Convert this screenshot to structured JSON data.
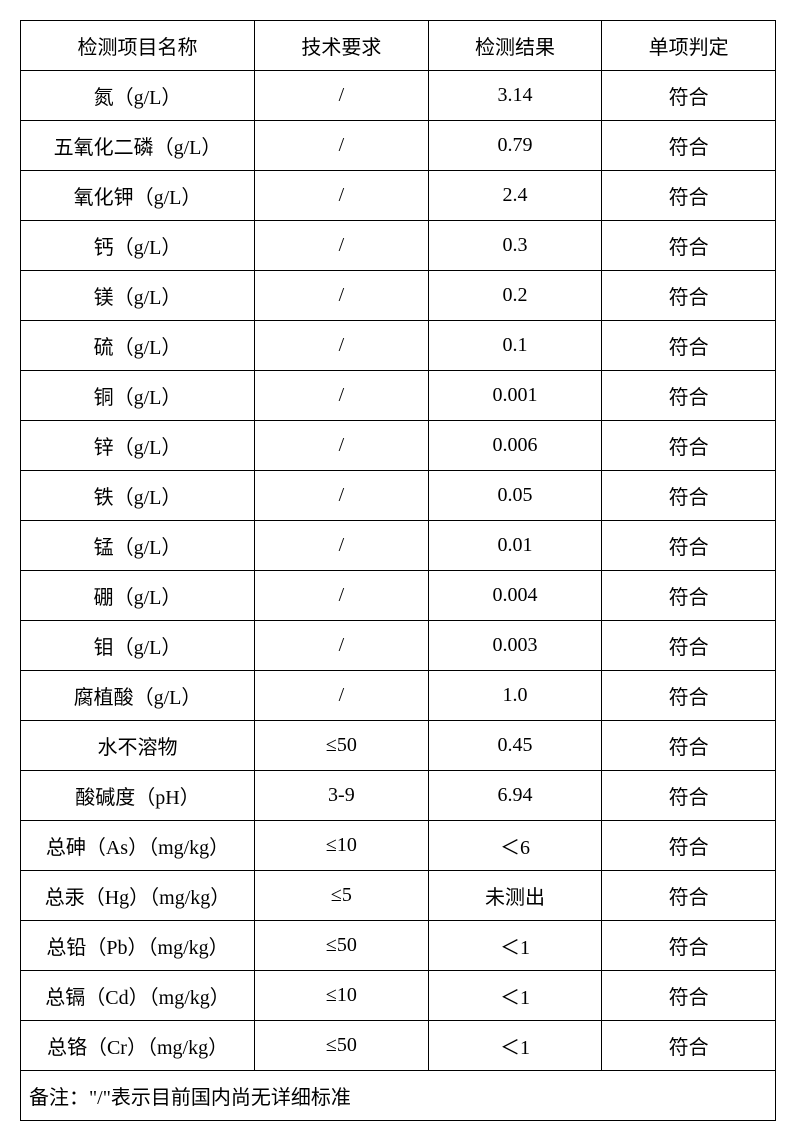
{
  "table": {
    "headers": [
      "检测项目名称",
      "技术要求",
      "检测结果",
      "单项判定"
    ],
    "rows": [
      [
        "氮（g/L）",
        "/",
        "3.14",
        "符合"
      ],
      [
        "五氧化二磷（g/L）",
        "/",
        "0.79",
        "符合"
      ],
      [
        "氧化钾（g/L）",
        "/",
        "2.4",
        "符合"
      ],
      [
        "钙（g/L）",
        "/",
        "0.3",
        "符合"
      ],
      [
        "镁（g/L）",
        "/",
        "0.2",
        "符合"
      ],
      [
        "硫（g/L）",
        "/",
        "0.1",
        "符合"
      ],
      [
        "铜（g/L）",
        "/",
        "0.001",
        "符合"
      ],
      [
        "锌（g/L）",
        "/",
        "0.006",
        "符合"
      ],
      [
        "铁（g/L）",
        "/",
        "0.05",
        "符合"
      ],
      [
        "锰（g/L）",
        "/",
        "0.01",
        "符合"
      ],
      [
        "硼（g/L）",
        "/",
        "0.004",
        "符合"
      ],
      [
        "钼（g/L）",
        "/",
        "0.003",
        "符合"
      ],
      [
        "腐植酸（g/L）",
        "/",
        "1.0",
        "符合"
      ],
      [
        "水不溶物",
        "≤50",
        "0.45",
        "符合"
      ],
      [
        "酸碱度（pH）",
        "3-9",
        "6.94",
        "符合"
      ],
      [
        "总砷（As）（mg/kg）",
        "≤10",
        "＜6",
        "符合"
      ],
      [
        "总汞（Hg）（mg/kg）",
        "≤5",
        "未测出",
        "符合"
      ],
      [
        "总铅（Pb）（mg/kg）",
        "≤50",
        "＜1",
        "符合"
      ],
      [
        "总镉（Cd）（mg/kg）",
        "≤10",
        "＜1",
        "符合"
      ],
      [
        "总铬（Cr）（mg/kg）",
        "≤50",
        "＜1",
        "符合"
      ]
    ],
    "footnote": "备注：\"/\"表示目前国内尚无详细标准",
    "border_color": "#000000",
    "background_color": "#ffffff",
    "text_color": "#000000",
    "font_size_pt": 15,
    "column_widths_pct": [
      31,
      23,
      23,
      23
    ]
  }
}
